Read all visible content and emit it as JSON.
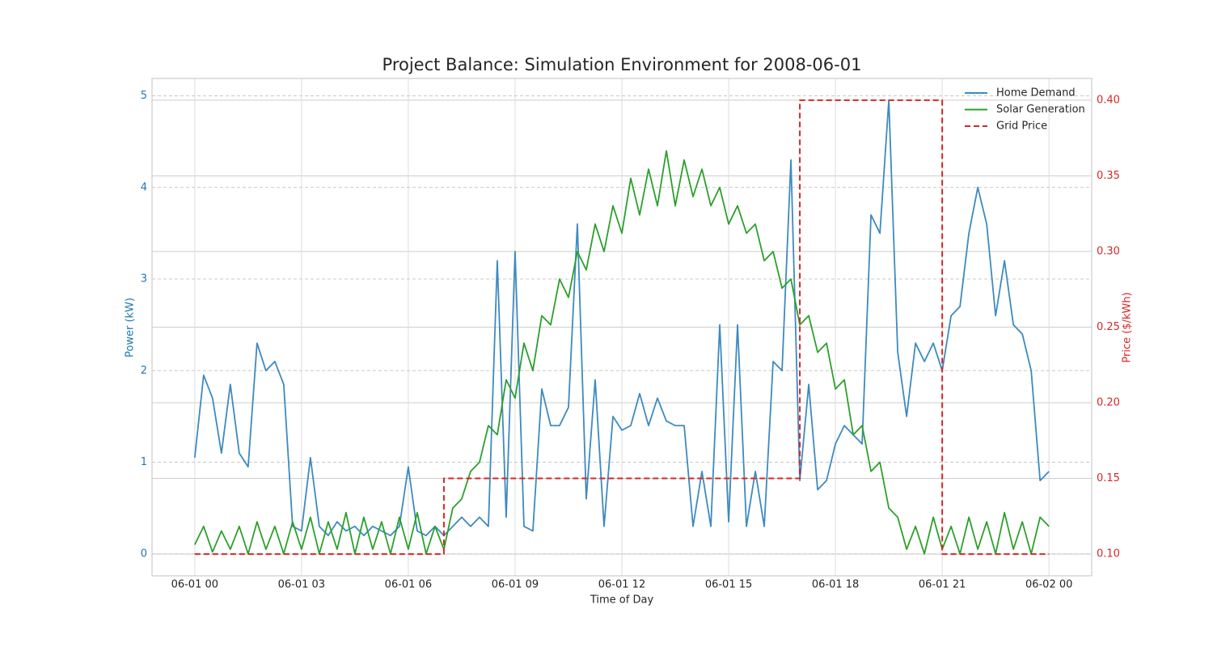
{
  "chart_data": {
    "type": "line",
    "title": "Project Balance: Simulation Environment for 2008-06-01",
    "xlabel": "Time of Day",
    "ylabel": "Power (kW)",
    "y2label": "Price ($/kWh)",
    "ylabel_color": "#1f77b4",
    "y2label_color": "#d62728",
    "legend": "upper right",
    "grid": true,
    "xlim": [
      -1.2,
      25.2
    ],
    "ylim": [
      -0.24,
      5.19
    ],
    "y2lim": [
      0.0856,
      0.4144
    ],
    "xticks": [
      {
        "value": 0,
        "label": "06-01 00"
      },
      {
        "value": 3,
        "label": "06-01 03"
      },
      {
        "value": 6,
        "label": "06-01 06"
      },
      {
        "value": 9,
        "label": "06-01 09"
      },
      {
        "value": 12,
        "label": "06-01 12"
      },
      {
        "value": 15,
        "label": "06-01 15"
      },
      {
        "value": 18,
        "label": "06-01 18"
      },
      {
        "value": 21,
        "label": "06-01 21"
      },
      {
        "value": 24,
        "label": "06-02 00"
      }
    ],
    "yticks": [
      0,
      1,
      2,
      3,
      4,
      5
    ],
    "y2ticks": [
      {
        "value": 0.1,
        "label": "0.10"
      },
      {
        "value": 0.15,
        "label": "0.15"
      },
      {
        "value": 0.2,
        "label": "0.20"
      },
      {
        "value": 0.25,
        "label": "0.25"
      },
      {
        "value": 0.3,
        "label": "0.30"
      },
      {
        "value": 0.35,
        "label": "0.35"
      },
      {
        "value": 0.4,
        "label": "0.40"
      }
    ],
    "x": [
      0,
      0.25,
      0.5,
      0.75,
      1,
      1.25,
      1.5,
      1.75,
      2,
      2.25,
      2.5,
      2.75,
      3,
      3.25,
      3.5,
      3.75,
      4,
      4.25,
      4.5,
      4.75,
      5,
      5.25,
      5.5,
      5.75,
      6,
      6.25,
      6.5,
      6.75,
      7,
      7.25,
      7.5,
      7.75,
      8,
      8.25,
      8.5,
      8.75,
      9,
      9.25,
      9.5,
      9.75,
      10,
      10.25,
      10.5,
      10.75,
      11,
      11.25,
      11.5,
      11.75,
      12,
      12.25,
      12.5,
      12.75,
      13,
      13.25,
      13.5,
      13.75,
      14,
      14.25,
      14.5,
      14.75,
      15,
      15.25,
      15.5,
      15.75,
      16,
      16.25,
      16.5,
      16.75,
      17,
      17.25,
      17.5,
      17.75,
      18,
      18.25,
      18.5,
      18.75,
      19,
      19.25,
      19.5,
      19.75,
      20,
      20.25,
      20.5,
      20.75,
      21,
      21.25,
      21.5,
      21.75,
      22,
      22.25,
      22.5,
      22.75,
      23,
      23.25,
      23.5,
      23.75,
      24
    ],
    "series": [
      {
        "name": "Home Demand",
        "color": "#3d8ac0",
        "style": "solid",
        "values": [
          1.05,
          1.95,
          1.7,
          1.1,
          1.85,
          1.1,
          0.95,
          2.3,
          2.0,
          2.1,
          1.85,
          0.3,
          0.25,
          1.05,
          0.3,
          0.2,
          0.35,
          0.25,
          0.3,
          0.2,
          0.3,
          0.25,
          0.2,
          0.3,
          0.95,
          0.25,
          0.2,
          0.3,
          0.2,
          0.3,
          0.4,
          0.3,
          0.4,
          0.3,
          3.2,
          0.4,
          3.3,
          0.3,
          0.25,
          1.8,
          1.4,
          1.4,
          1.6,
          3.6,
          0.6,
          1.9,
          0.3,
          1.5,
          1.35,
          1.4,
          1.75,
          1.4,
          1.7,
          1.45,
          1.4,
          1.4,
          0.3,
          0.9,
          0.3,
          2.5,
          0.35,
          2.5,
          0.3,
          0.9,
          0.3,
          2.1,
          2.0,
          4.3,
          0.8,
          1.85,
          0.7,
          0.8,
          1.2,
          1.4,
          1.3,
          1.2,
          3.7,
          3.5,
          4.95,
          2.2,
          1.5,
          2.3,
          2.1,
          2.3,
          2.0,
          2.6,
          2.7,
          3.5,
          4.0,
          3.6,
          2.6,
          3.2,
          2.5,
          2.4,
          2.0,
          0.8,
          0.9
        ]
      },
      {
        "name": "Solar Generation",
        "color": "#2ca02c",
        "style": "solid",
        "values": [
          0.1,
          0.3,
          0.02,
          0.25,
          0.05,
          0.3,
          0.0,
          0.35,
          0.05,
          0.3,
          0.0,
          0.35,
          0.05,
          0.4,
          0.0,
          0.35,
          0.05,
          0.45,
          0.0,
          0.4,
          0.05,
          0.35,
          0.0,
          0.4,
          0.05,
          0.45,
          0.0,
          0.3,
          0.05,
          0.5,
          0.6,
          0.9,
          1.0,
          1.4,
          1.3,
          1.9,
          1.7,
          2.3,
          2.0,
          2.6,
          2.5,
          3.0,
          2.8,
          3.3,
          3.1,
          3.6,
          3.3,
          3.8,
          3.5,
          4.1,
          3.7,
          4.2,
          3.8,
          4.4,
          3.8,
          4.3,
          3.9,
          4.2,
          3.8,
          4.0,
          3.6,
          3.8,
          3.5,
          3.6,
          3.2,
          3.3,
          2.9,
          3.0,
          2.5,
          2.6,
          2.2,
          2.3,
          1.8,
          1.9,
          1.3,
          1.4,
          0.9,
          1.0,
          0.5,
          0.4,
          0.05,
          0.3,
          0.0,
          0.4,
          0.05,
          0.3,
          0.0,
          0.4,
          0.05,
          0.35,
          0.0,
          0.45,
          0.05,
          0.35,
          0.0,
          0.4,
          0.3
        ]
      },
      {
        "name": "Grid Price",
        "color": "#d62728",
        "style": "dashed",
        "axis": "y2",
        "x": [
          0,
          7,
          7,
          17,
          17,
          21,
          21,
          24
        ],
        "values": [
          0.1,
          0.1,
          0.15,
          0.15,
          0.4,
          0.4,
          0.1,
          0.1
        ]
      }
    ]
  }
}
